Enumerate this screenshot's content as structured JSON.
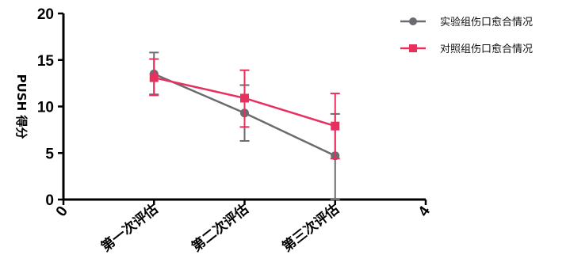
{
  "chart_data": {
    "type": "line",
    "title": "",
    "xlabel": "",
    "ylabel": "PUSH 得分",
    "xlim": [
      0,
      4
    ],
    "ylim": [
      0,
      20
    ],
    "x_ticks": [
      {
        "value": 0,
        "label": "0"
      },
      {
        "value": 4,
        "label": "4"
      }
    ],
    "y_ticks": [
      0,
      5,
      10,
      15,
      20
    ],
    "categories": [
      {
        "x": 1,
        "label": "第一次评估"
      },
      {
        "x": 2,
        "label": "第二次评估"
      },
      {
        "x": 3,
        "label": "第三次评估"
      }
    ],
    "legend_position": "top-right",
    "grid": false,
    "series": [
      {
        "name": "实验组伤口愈合情况",
        "color": "#6b6b70",
        "marker": "circle",
        "x": [
          1,
          2,
          3
        ],
        "values": [
          13.5,
          9.3,
          4.7
        ],
        "err_upper": [
          15.8,
          12.3,
          9.2
        ],
        "err_lower": [
          11.3,
          6.3,
          0.0
        ]
      },
      {
        "name": "对照组伤口愈合情况",
        "color": "#e8305e",
        "marker": "square",
        "x": [
          1,
          2,
          3
        ],
        "values": [
          13.1,
          10.9,
          7.9
        ],
        "err_upper": [
          15.1,
          13.9,
          11.4
        ],
        "err_lower": [
          11.2,
          7.8,
          4.4
        ]
      }
    ]
  }
}
